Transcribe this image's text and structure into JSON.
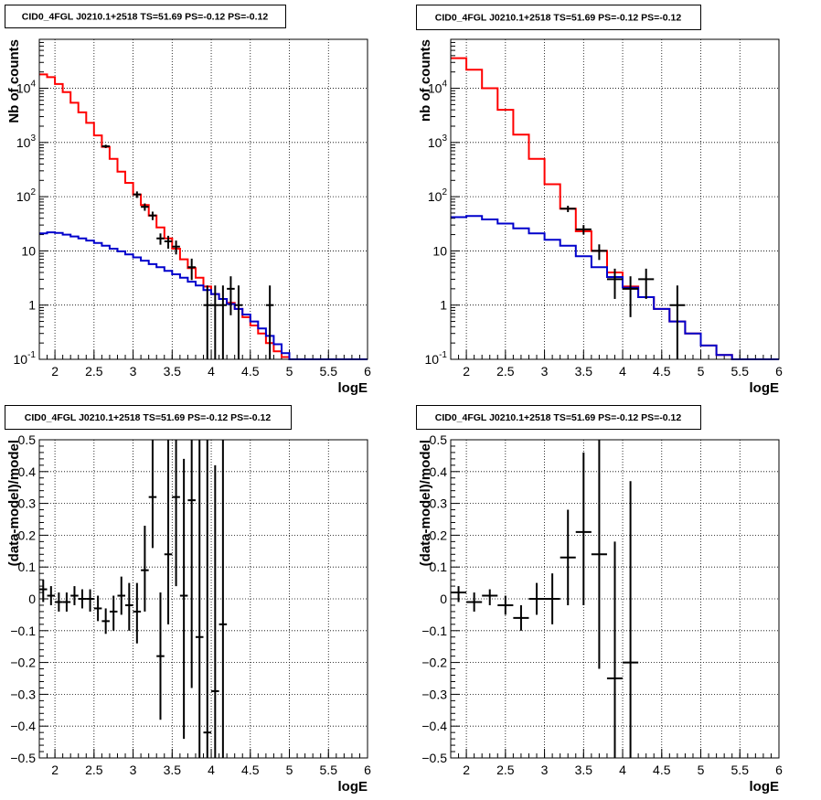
{
  "window_title": "CID0_4FGL J0210.1+2518 TS=51.69 PS=-0.12 PS=-0.12",
  "chart_data": [
    {
      "id": "counts-fine",
      "type": "step-line-with-errorbars",
      "title": "CID0_4FGL J0210.1+2518 TS=51.69 PS=-0.12 PS=-0.12",
      "xlabel": "logE",
      "ylabel": "Nb of counts",
      "xlim": [
        1.8,
        6
      ],
      "ylim": [
        0.1,
        80000
      ],
      "yscale": "log",
      "grid": true,
      "x_ticks": [
        "2",
        "2.5",
        "3",
        "3.5",
        "4",
        "4.5",
        "5",
        "5.5",
        "6"
      ],
      "y_ticks": [
        {
          "value": 0.1,
          "base": "10",
          "exp": "-1"
        },
        {
          "value": 1,
          "text": "1"
        },
        {
          "value": 10,
          "text": "10"
        },
        {
          "value": 100,
          "base": "10",
          "exp": "2"
        },
        {
          "value": 1000,
          "base": "10",
          "exp": "3"
        },
        {
          "value": 10000,
          "base": "10",
          "exp": "4"
        }
      ],
      "bin_edges": [
        1.8,
        1.9,
        2.0,
        2.1,
        2.2,
        2.3,
        2.4,
        2.5,
        2.6,
        2.7,
        2.8,
        2.9,
        3.0,
        3.1,
        3.2,
        3.3,
        3.4,
        3.5,
        3.6,
        3.7,
        3.8,
        3.9,
        4.0,
        4.1,
        4.2,
        4.3,
        4.4,
        4.5,
        4.6,
        4.7,
        4.8,
        4.9,
        5.0,
        5.1,
        5.2,
        5.3,
        5.4,
        5.5,
        5.6,
        5.7,
        5.8,
        5.9,
        6.0
      ],
      "series": [
        {
          "color": "#ff0000",
          "kind": "step",
          "values": [
            18000,
            16000,
            12000,
            8500,
            5400,
            3600,
            2300,
            1350,
            830,
            500,
            290,
            180,
            110,
            70,
            45,
            27,
            17,
            11,
            7,
            4.8,
            3.2,
            2.2,
            1.6,
            1.3,
            1.1,
            0.85,
            0.6,
            0.42,
            0.3,
            0.2,
            0.14,
            0.11,
            0.1,
            0.1,
            0.1,
            0.1,
            0.1,
            0.1,
            0.1,
            0.1,
            0.1,
            0.1
          ]
        },
        {
          "color": "#0000cc",
          "kind": "step",
          "values": [
            21,
            22,
            21.5,
            20,
            18.5,
            17,
            15.5,
            14,
            12.5,
            11,
            9.8,
            8.6,
            7.6,
            6.6,
            5.7,
            5,
            4.3,
            3.7,
            3.2,
            2.7,
            2.3,
            1.9,
            1.6,
            1.3,
            1.05,
            0.85,
            0.67,
            0.5,
            0.37,
            0.27,
            0.19,
            0.13,
            0.1,
            0.1,
            0.1,
            0.1,
            0.1,
            0.1,
            0.1,
            0.1,
            0.1,
            0.1
          ]
        },
        {
          "color": "#000000",
          "kind": "points",
          "points": [
            {
              "x": 2.65,
              "y": 850,
              "lo": 790,
              "hi": 910
            },
            {
              "x": 3.05,
              "y": 110,
              "lo": 95,
              "hi": 125
            },
            {
              "x": 3.15,
              "y": 65,
              "lo": 55,
              "hi": 75
            },
            {
              "x": 3.25,
              "y": 45,
              "lo": 37,
              "hi": 53
            },
            {
              "x": 3.35,
              "y": 17,
              "lo": 13,
              "hi": 21
            },
            {
              "x": 3.45,
              "y": 15,
              "lo": 11,
              "hi": 19
            },
            {
              "x": 3.55,
              "y": 12,
              "lo": 8.6,
              "hi": 15.5
            },
            {
              "x": 3.75,
              "y": 5,
              "lo": 2.9,
              "hi": 7.2
            },
            {
              "x": 3.95,
              "y": 1,
              "lo": 0.1,
              "hi": 2.3
            },
            {
              "x": 4.05,
              "y": 1,
              "lo": 0.1,
              "hi": 2.3
            },
            {
              "x": 4.15,
              "y": 1,
              "lo": 0.1,
              "hi": 2.3
            },
            {
              "x": 4.25,
              "y": 2,
              "lo": 0.65,
              "hi": 3.4
            },
            {
              "x": 4.35,
              "y": 1,
              "lo": 0.1,
              "hi": 2.3
            },
            {
              "x": 4.75,
              "y": 1,
              "lo": 0.1,
              "hi": 2.3
            }
          ]
        }
      ]
    },
    {
      "id": "counts-coarse",
      "type": "step-line-with-errorbars",
      "title": "CID0_4FGL J0210.1+2518 TS=51.69 PS=-0.12 PS=-0.12",
      "xlabel": "logE",
      "ylabel": "nb of counts",
      "xlim": [
        1.8,
        6
      ],
      "ylim": [
        0.1,
        80000
      ],
      "yscale": "log",
      "grid": true,
      "x_ticks": [
        "2",
        "2.5",
        "3",
        "3.5",
        "4",
        "4.5",
        "5",
        "5.5",
        "6"
      ],
      "y_ticks": [
        {
          "value": 0.1,
          "base": "10",
          "exp": "-1"
        },
        {
          "value": 1,
          "text": "1"
        },
        {
          "value": 10,
          "text": "10"
        },
        {
          "value": 100,
          "base": "10",
          "exp": "2"
        },
        {
          "value": 1000,
          "base": "10",
          "exp": "3"
        },
        {
          "value": 10000,
          "base": "10",
          "exp": "4"
        }
      ],
      "bin_edges": [
        1.8,
        2.0,
        2.2,
        2.4,
        2.6,
        2.8,
        3.0,
        3.2,
        3.4,
        3.6,
        3.8,
        4.0,
        4.2,
        4.4,
        4.6,
        4.8,
        5.0,
        5.2,
        5.4,
        5.6,
        5.8,
        6.0
      ],
      "series": [
        {
          "color": "#ff0000",
          "kind": "step",
          "values": [
            36000,
            22000,
            10000,
            4000,
            1400,
            500,
            170,
            60,
            23,
            10,
            4,
            2.2,
            1.4,
            0.85,
            0.5,
            0.3,
            0.18,
            0.12,
            0.1,
            0.1,
            0.1
          ]
        },
        {
          "color": "#0000cc",
          "kind": "step",
          "values": [
            42,
            44,
            38,
            32,
            26,
            21,
            16,
            12.5,
            8,
            5,
            3.3,
            2.1,
            1.4,
            0.85,
            0.5,
            0.3,
            0.18,
            0.12,
            0.1,
            0.1,
            0.1
          ]
        },
        {
          "color": "#000000",
          "kind": "points",
          "points": [
            {
              "x": 3.3,
              "y": 60,
              "lo": 52,
              "hi": 68
            },
            {
              "x": 3.5,
              "y": 25,
              "lo": 20,
              "hi": 30
            },
            {
              "x": 3.7,
              "y": 10,
              "lo": 6.8,
              "hi": 13.2
            },
            {
              "x": 3.9,
              "y": 3,
              "lo": 1.3,
              "hi": 4.7
            },
            {
              "x": 4.1,
              "y": 2,
              "lo": 0.6,
              "hi": 3.4
            },
            {
              "x": 4.3,
              "y": 3,
              "lo": 1.3,
              "hi": 4.7
            },
            {
              "x": 4.7,
              "y": 1,
              "lo": 0.1,
              "hi": 2.3
            }
          ]
        }
      ]
    },
    {
      "id": "residuals-fine",
      "type": "scatter-with-errorbars",
      "title": "CID0_4FGL J0210.1+2518 TS=51.69 PS=-0.12 PS=-0.12",
      "xlabel": "logE",
      "ylabel": "(data-model)/model",
      "xlim": [
        1.8,
        6
      ],
      "ylim": [
        -0.5,
        0.5
      ],
      "yscale": "linear",
      "grid": true,
      "x_ticks": [
        "2",
        "2.5",
        "3",
        "3.5",
        "4",
        "4.5",
        "5",
        "5.5",
        "6"
      ],
      "y_ticks": [
        {
          "value": -0.5,
          "text": "−0.5"
        },
        {
          "value": -0.4,
          "text": "−0.4"
        },
        {
          "value": -0.3,
          "text": "−0.3"
        },
        {
          "value": -0.2,
          "text": "−0.2"
        },
        {
          "value": -0.1,
          "text": "−0.1"
        },
        {
          "value": 0,
          "text": "0"
        },
        {
          "value": 0.1,
          "text": "0.1"
        },
        {
          "value": 0.2,
          "text": "0.2"
        },
        {
          "value": 0.3,
          "text": "0.3"
        },
        {
          "value": 0.4,
          "text": "0.4"
        },
        {
          "value": 0.5,
          "text": "0.5"
        }
      ],
      "series": [
        {
          "color": "#000000",
          "kind": "points",
          "halfwidth": 0.05,
          "points": [
            {
              "x": 1.85,
              "y": 0.03,
              "lo": -0.01,
              "hi": 0.06
            },
            {
              "x": 1.95,
              "y": 0.01,
              "lo": -0.02,
              "hi": 0.04
            },
            {
              "x": 2.05,
              "y": -0.01,
              "lo": -0.04,
              "hi": 0.02
            },
            {
              "x": 2.15,
              "y": -0.01,
              "lo": -0.04,
              "hi": 0.02
            },
            {
              "x": 2.25,
              "y": 0.01,
              "lo": -0.02,
              "hi": 0.04
            },
            {
              "x": 2.35,
              "y": 0.0,
              "lo": -0.03,
              "hi": 0.03
            },
            {
              "x": 2.45,
              "y": 0.0,
              "lo": -0.04,
              "hi": 0.03
            },
            {
              "x": 2.55,
              "y": -0.03,
              "lo": -0.07,
              "hi": 0.01
            },
            {
              "x": 2.65,
              "y": -0.07,
              "lo": -0.11,
              "hi": -0.03
            },
            {
              "x": 2.75,
              "y": -0.04,
              "lo": -0.1,
              "hi": 0.01
            },
            {
              "x": 2.85,
              "y": 0.01,
              "lo": -0.05,
              "hi": 0.07
            },
            {
              "x": 2.95,
              "y": -0.02,
              "lo": -0.1,
              "hi": 0.05
            },
            {
              "x": 3.05,
              "y": -0.04,
              "lo": -0.14,
              "hi": 0.05
            },
            {
              "x": 3.15,
              "y": 0.09,
              "lo": -0.04,
              "hi": 0.23
            },
            {
              "x": 3.25,
              "y": 0.32,
              "lo": 0.16,
              "hi": 0.5
            },
            {
              "x": 3.35,
              "y": -0.18,
              "lo": -0.38,
              "hi": 0.02
            },
            {
              "x": 3.45,
              "y": 0.14,
              "lo": -0.08,
              "hi": 0.5
            },
            {
              "x": 3.55,
              "y": 0.32,
              "lo": 0.04,
              "hi": 0.5
            },
            {
              "x": 3.65,
              "y": 0.01,
              "lo": -0.44,
              "hi": 0.44
            },
            {
              "x": 3.75,
              "y": 0.31,
              "lo": -0.28,
              "hi": 0.5
            },
            {
              "x": 3.85,
              "y": -0.12,
              "lo": -0.5,
              "hi": 0.5
            },
            {
              "x": 3.95,
              "y": -0.42,
              "lo": -0.5,
              "hi": 0.5
            },
            {
              "x": 4.05,
              "y": -0.29,
              "lo": -0.5,
              "hi": 0.42
            },
            {
              "x": 4.15,
              "y": -0.08,
              "lo": -0.5,
              "hi": 0.5
            }
          ]
        }
      ]
    },
    {
      "id": "residuals-coarse",
      "type": "scatter-with-errorbars",
      "title": "CID0_4FGL J0210.1+2518 TS=51.69 PS=-0.12 PS=-0.12",
      "xlabel": "logE",
      "ylabel": "(data-model)/model",
      "xlim": [
        1.8,
        6
      ],
      "ylim": [
        -0.5,
        0.5
      ],
      "yscale": "linear",
      "grid": true,
      "x_ticks": [
        "2",
        "2.5",
        "3",
        "3.5",
        "4",
        "4.5",
        "5",
        "5.5",
        "6"
      ],
      "y_ticks": [
        {
          "value": -0.5,
          "text": "−0.5"
        },
        {
          "value": -0.4,
          "text": "−0.4"
        },
        {
          "value": -0.3,
          "text": "−0.3"
        },
        {
          "value": -0.2,
          "text": "−0.2"
        },
        {
          "value": -0.1,
          "text": "−0.1"
        },
        {
          "value": 0,
          "text": "0"
        },
        {
          "value": 0.1,
          "text": "0.1"
        },
        {
          "value": 0.2,
          "text": "0.2"
        },
        {
          "value": 0.3,
          "text": "0.3"
        },
        {
          "value": 0.4,
          "text": "0.4"
        },
        {
          "value": 0.5,
          "text": "0.5"
        }
      ],
      "series": [
        {
          "color": "#000000",
          "kind": "points",
          "halfwidth": 0.1,
          "points": [
            {
              "x": 1.9,
              "y": 0.02,
              "lo": -0.01,
              "hi": 0.04
            },
            {
              "x": 2.1,
              "y": -0.01,
              "lo": -0.04,
              "hi": 0.02
            },
            {
              "x": 2.3,
              "y": 0.01,
              "lo": -0.02,
              "hi": 0.03
            },
            {
              "x": 2.5,
              "y": -0.02,
              "lo": -0.05,
              "hi": 0.01
            },
            {
              "x": 2.7,
              "y": -0.06,
              "lo": -0.1,
              "hi": -0.02
            },
            {
              "x": 2.9,
              "y": 0.0,
              "lo": -0.05,
              "hi": 0.05
            },
            {
              "x": 3.1,
              "y": 0.0,
              "lo": -0.08,
              "hi": 0.08
            },
            {
              "x": 3.3,
              "y": 0.13,
              "lo": -0.02,
              "hi": 0.28
            },
            {
              "x": 3.5,
              "y": 0.21,
              "lo": -0.02,
              "hi": 0.46
            },
            {
              "x": 3.7,
              "y": 0.14,
              "lo": -0.22,
              "hi": 0.5
            },
            {
              "x": 3.9,
              "y": -0.25,
              "lo": -0.5,
              "hi": 0.18
            },
            {
              "x": 4.1,
              "y": -0.2,
              "lo": -0.5,
              "hi": 0.37
            }
          ]
        }
      ]
    }
  ]
}
